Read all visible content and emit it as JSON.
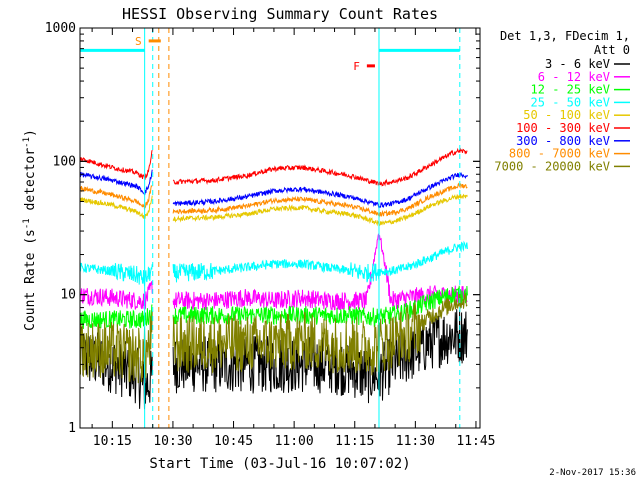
{
  "chart_data": {
    "type": "line",
    "title": "HESSI Observing Summary Count Rates",
    "xlabel": "Start Time (03-Jul-16 10:07:02)",
    "ylabel_main": "Count Rate (s",
    "ylabel_sup1": "-1",
    "ylabel_mid": " detector",
    "ylabel_sup2": "-1",
    "ylabel_end": ")",
    "yscale": "log",
    "ylim": [
      1,
      1000
    ],
    "xlim": [
      "10:07",
      "11:46"
    ],
    "x_ticks": [
      "10:15",
      "10:30",
      "10:45",
      "11:00",
      "11:15",
      "11:30",
      "11:45"
    ],
    "x_tick_minutes": [
      15,
      30,
      45,
      60,
      75,
      90,
      105
    ],
    "y_ticks": [
      "1",
      "10",
      "100",
      "1000"
    ],
    "y_tick_values": [
      1,
      10,
      100,
      1000
    ],
    "legend_header": [
      "Det 1,3, FDecim 1,",
      "Att 0"
    ],
    "time_points_min": [
      7,
      15,
      21,
      23,
      24,
      25,
      26.5,
      30,
      40,
      48,
      55,
      62,
      68,
      74,
      78,
      81,
      84,
      88,
      94,
      99,
      101,
      103
    ],
    "gap_minutes": [
      26.5,
      30
    ],
    "series": [
      {
        "name": "3 - 6 keV",
        "color": "#000000",
        "values": [
          3.5,
          3,
          2.5,
          2,
          2.2,
          2.5,
          null,
          3,
          3,
          3,
          3,
          3,
          3,
          2.8,
          2.5,
          2.5,
          3,
          3.5,
          4.5,
          5,
          5,
          5
        ]
      },
      {
        "name": "6 - 12 keV",
        "color": "#ff00ff",
        "values": [
          10,
          9.5,
          9,
          9,
          10,
          12,
          null,
          9,
          9,
          9.5,
          9,
          9.5,
          9,
          9,
          9,
          30,
          9,
          9.5,
          10,
          10,
          10,
          10
        ]
      },
      {
        "name": "12 - 25 keV",
        "color": "#00ff00",
        "values": [
          6.5,
          6.5,
          6.5,
          6.5,
          7,
          7.5,
          null,
          7,
          7,
          7,
          7,
          7,
          7,
          7,
          6.8,
          6.8,
          7,
          7.5,
          9,
          10,
          10,
          10
        ]
      },
      {
        "name": "25 - 50 keV",
        "color": "#00ffff",
        "values": [
          16,
          15,
          14,
          13,
          14,
          16,
          null,
          14.5,
          15,
          16,
          17,
          17,
          16,
          15,
          14.5,
          15,
          15,
          16,
          19,
          22,
          23,
          23
        ]
      },
      {
        "name": "50 - 100 keV",
        "color": "#e6c800",
        "values": [
          52,
          47,
          42,
          38,
          42,
          58,
          null,
          37,
          38,
          40,
          44,
          45,
          42,
          40,
          37,
          34,
          35,
          38,
          47,
          53,
          55,
          54
        ]
      },
      {
        "name": "100 - 300 keV",
        "color": "#ff0000",
        "values": [
          105,
          90,
          82,
          75,
          85,
          125,
          null,
          70,
          72,
          78,
          88,
          90,
          84,
          78,
          72,
          68,
          70,
          75,
          95,
          115,
          120,
          118
        ]
      },
      {
        "name": "300 - 800 keV",
        "color": "#0000ff",
        "values": [
          80,
          72,
          65,
          58,
          65,
          88,
          null,
          48,
          50,
          54,
          60,
          62,
          58,
          54,
          50,
          47,
          48,
          52,
          65,
          76,
          80,
          78
        ]
      },
      {
        "name": "800 - 7000 keV",
        "color": "#ff8c00",
        "values": [
          63,
          56,
          50,
          45,
          52,
          70,
          null,
          42,
          43,
          46,
          51,
          52,
          49,
          46,
          43,
          40,
          41,
          44,
          55,
          63,
          66,
          65
        ]
      },
      {
        "name": "7000 - 20000 keV",
        "color": "#808000",
        "values": [
          4,
          3.8,
          3.5,
          3.5,
          4,
          5,
          null,
          4.2,
          4.3,
          4.3,
          4.3,
          4.5,
          4.3,
          4.2,
          4,
          4.2,
          4.5,
          5,
          7,
          8.5,
          9,
          9
        ]
      }
    ],
    "markers": [
      {
        "label": "S",
        "color": "#ff8c00",
        "x_min": 24,
        "x_end_min": 27,
        "y": 800
      },
      {
        "label": "F",
        "color": "#ff0000",
        "x_min": 78,
        "x_end_min": 80,
        "y": 520
      }
    ],
    "cyan_bars": [
      {
        "x_start_min": 7,
        "x_end_min": 23,
        "y": 680
      },
      {
        "x_start_min": 81,
        "x_end_min": 101,
        "y": 680
      }
    ],
    "cyan_lines_min": [
      23,
      25,
      81,
      101
    ],
    "orange_lines_min": [
      26.5,
      29
    ],
    "footer_date": "2-Nov-2017 15:36"
  }
}
